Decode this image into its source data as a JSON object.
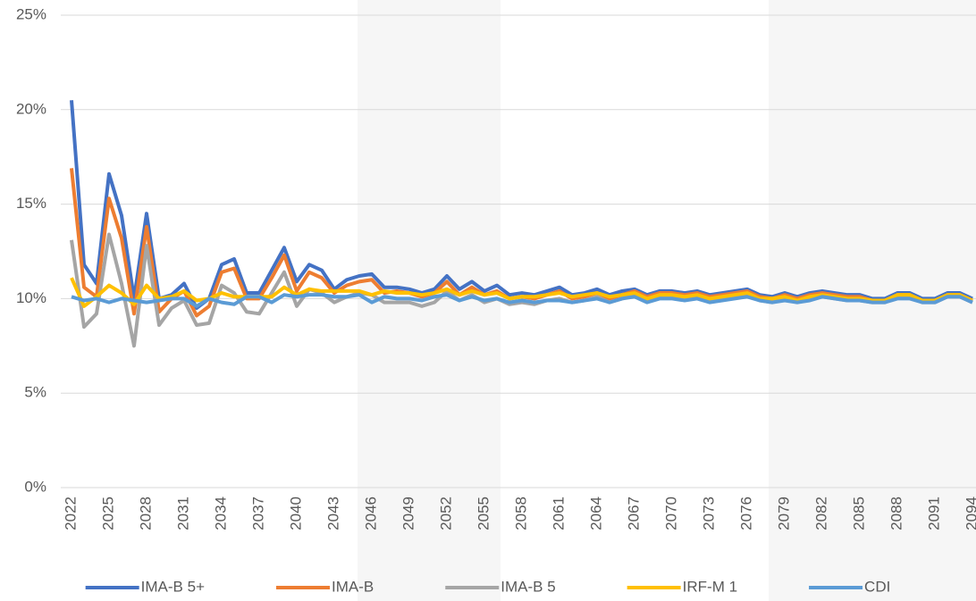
{
  "chart_data": {
    "type": "line",
    "categories": [
      "2022",
      null,
      null,
      "2025",
      null,
      null,
      "2028",
      null,
      null,
      "2031",
      null,
      null,
      "2034",
      null,
      null,
      "2037",
      null,
      null,
      "2040",
      null,
      null,
      "2043",
      null,
      null,
      "2046",
      null,
      null,
      "2049",
      null,
      null,
      "2052",
      null,
      null,
      "2055",
      null,
      null,
      "2058",
      null,
      null,
      "2061",
      null,
      null,
      "2064",
      null,
      null,
      "2067",
      null,
      null,
      "2070",
      null,
      null,
      "2073",
      null,
      null,
      "2076",
      null,
      null,
      "2079",
      null,
      null,
      "2082",
      null,
      null,
      "2085",
      null,
      null,
      "2088",
      null,
      null,
      "2091",
      null,
      null,
      "2094"
    ],
    "series": [
      {
        "name": "IMA-B 5+",
        "color": "#4472c4",
        "values": [
          20.5,
          11.8,
          10.8,
          16.6,
          14.4,
          10.0,
          14.5,
          10.0,
          10.2,
          10.8,
          9.5,
          10.0,
          11.8,
          12.1,
          10.3,
          10.3,
          11.5,
          12.7,
          10.9,
          11.8,
          11.5,
          10.5,
          11.0,
          11.2,
          11.3,
          10.6,
          10.6,
          10.5,
          10.3,
          10.5,
          11.2,
          10.5,
          10.9,
          10.4,
          10.7,
          10.2,
          10.3,
          10.2,
          10.4,
          10.6,
          10.2,
          10.3,
          10.5,
          10.2,
          10.4,
          10.5,
          10.2,
          10.4,
          10.4,
          10.3,
          10.4,
          10.2,
          10.3,
          10.4,
          10.5,
          10.2,
          10.1,
          10.3,
          10.1,
          10.3,
          10.4,
          10.3,
          10.2,
          10.2,
          10.0,
          10.0,
          10.3,
          10.3,
          10.0,
          10.0,
          10.3,
          10.3,
          10.0
        ]
      },
      {
        "name": "IMA-B",
        "color": "#ed7d31",
        "values": [
          16.9,
          10.6,
          10.1,
          15.3,
          13.2,
          9.2,
          13.8,
          9.3,
          10.0,
          10.4,
          9.1,
          9.6,
          11.4,
          11.6,
          10.0,
          10.0,
          11.1,
          12.3,
          10.4,
          11.4,
          11.1,
          10.3,
          10.7,
          10.9,
          11.0,
          10.3,
          10.4,
          10.3,
          10.1,
          10.3,
          10.9,
          10.2,
          10.6,
          10.2,
          10.4,
          10.0,
          10.1,
          10.0,
          10.2,
          10.4,
          10.0,
          10.1,
          10.3,
          10.0,
          10.2,
          10.4,
          10.1,
          10.3,
          10.3,
          10.2,
          10.3,
          10.1,
          10.2,
          10.3,
          10.4,
          10.1,
          10.0,
          10.2,
          10.0,
          10.2,
          10.3,
          10.2,
          10.1,
          10.1,
          9.9,
          9.9,
          10.2,
          10.2,
          9.9,
          9.9,
          10.2,
          10.2,
          9.9
        ]
      },
      {
        "name": "IMA-B 5",
        "color": "#a5a5a5",
        "values": [
          13.1,
          8.5,
          9.2,
          13.4,
          10.8,
          7.5,
          12.8,
          8.6,
          9.5,
          9.9,
          8.6,
          8.7,
          10.7,
          10.3,
          9.3,
          9.2,
          10.3,
          11.4,
          9.6,
          10.5,
          10.3,
          9.8,
          10.1,
          10.3,
          10.2,
          9.8,
          9.8,
          9.8,
          9.6,
          9.8,
          10.4,
          9.9,
          10.2,
          9.8,
          10.0,
          9.7,
          9.8,
          9.7,
          9.9,
          10.0,
          9.8,
          9.9,
          10.1,
          9.8,
          10.0,
          10.2,
          9.9,
          10.1,
          10.1,
          10.0,
          10.1,
          9.9,
          10.0,
          10.1,
          10.2,
          9.9,
          9.8,
          10.0,
          9.8,
          10.0,
          10.1,
          10.0,
          9.9,
          9.9,
          9.8,
          9.8,
          10.1,
          10.1,
          9.8,
          9.8,
          10.1,
          10.1,
          9.8
        ]
      },
      {
        "name": "IRF-M 1",
        "color": "#ffc000",
        "values": [
          11.1,
          9.6,
          10.1,
          10.7,
          10.3,
          9.7,
          10.7,
          10.0,
          10.1,
          10.4,
          9.9,
          10.0,
          10.3,
          10.1,
          10.1,
          10.1,
          10.1,
          10.6,
          10.2,
          10.5,
          10.4,
          10.4,
          10.4,
          10.4,
          10.2,
          10.4,
          10.3,
          10.3,
          10.2,
          10.3,
          10.5,
          10.2,
          10.4,
          10.2,
          10.3,
          10.0,
          10.1,
          10.1,
          10.2,
          10.3,
          10.1,
          10.2,
          10.3,
          10.1,
          10.2,
          10.3,
          10.0,
          10.2,
          10.2,
          10.1,
          10.2,
          10.0,
          10.1,
          10.2,
          10.3,
          10.0,
          10.0,
          10.1,
          9.9,
          10.1,
          10.2,
          10.1,
          10.0,
          10.0,
          9.9,
          9.9,
          10.2,
          10.2,
          9.9,
          9.9,
          10.2,
          10.2,
          9.9
        ]
      },
      {
        "name": "CDI",
        "color": "#5b9bd5",
        "values": [
          10.1,
          9.9,
          10.0,
          9.8,
          10.0,
          9.9,
          9.8,
          9.9,
          10.0,
          10.0,
          9.6,
          10.0,
          9.8,
          9.7,
          10.1,
          10.1,
          9.8,
          10.2,
          10.1,
          10.2,
          10.2,
          10.1,
          10.1,
          10.2,
          9.8,
          10.1,
          10.0,
          10.0,
          9.9,
          10.1,
          10.2,
          9.9,
          10.1,
          9.9,
          10.0,
          9.8,
          9.9,
          9.8,
          9.9,
          9.9,
          9.8,
          9.9,
          10.0,
          9.8,
          10.0,
          10.1,
          9.8,
          10.0,
          10.0,
          9.9,
          10.0,
          9.8,
          9.9,
          10.0,
          10.1,
          9.9,
          9.8,
          9.9,
          9.8,
          9.9,
          10.1,
          10.0,
          9.9,
          9.9,
          9.8,
          9.8,
          10.0,
          10.0,
          9.8,
          9.8,
          10.1,
          10.1,
          9.8
        ]
      }
    ],
    "ylim": [
      0,
      25
    ],
    "yticks": [
      {
        "value": 0,
        "label": "0%"
      },
      {
        "value": 5,
        "label": "5%"
      },
      {
        "value": 10,
        "label": "10%"
      },
      {
        "value": 15,
        "label": "15%"
      },
      {
        "value": 20,
        "label": "20%"
      },
      {
        "value": 25,
        "label": "25%"
      }
    ],
    "grid": true,
    "legend": "bottom"
  }
}
